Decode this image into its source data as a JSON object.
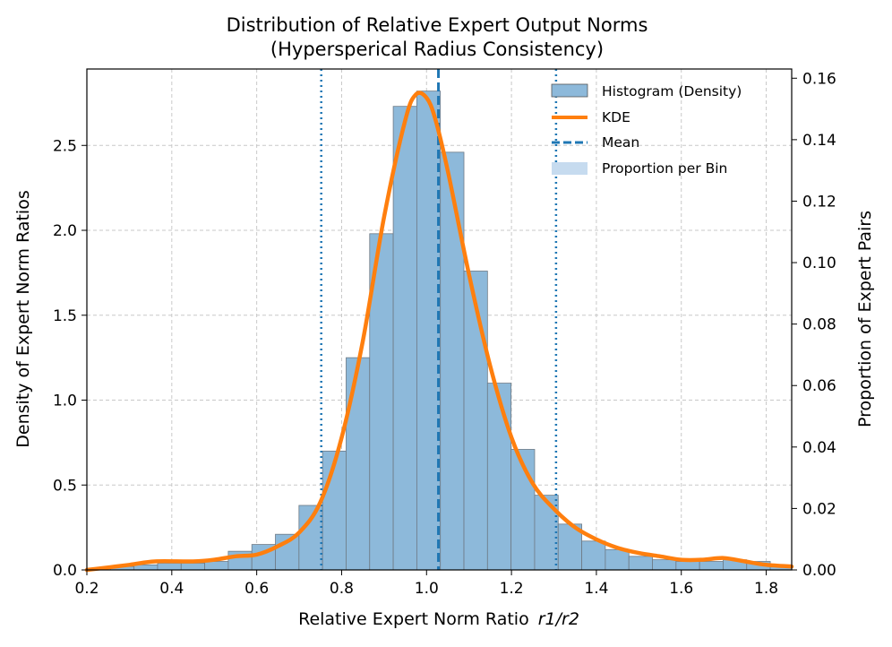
{
  "chart_data": {
    "type": "bar",
    "title": "Distribution of Relative Expert Output Norms",
    "subtitle": "(Hypersperical Radius Consistency)",
    "xlabel": "Relative Expert Norm Ratio",
    "xlabel_math": "r1/r2",
    "ylabel": "Density of Expert Norm Ratios",
    "y2label": "Proportion of Expert Pairs",
    "xlim": [
      0.2,
      1.86
    ],
    "ylim": [
      0,
      2.95
    ],
    "y2lim": [
      0,
      0.163
    ],
    "grid": true,
    "legend_position": "top-right",
    "xticks": [
      "0.2",
      "0.4",
      "0.6",
      "0.8",
      "1.0",
      "1.2",
      "1.4",
      "1.6",
      "1.8"
    ],
    "yticks": [
      "0.0",
      "0.5",
      "1.0",
      "1.5",
      "2.0",
      "2.5"
    ],
    "y2ticks": [
      "0.00",
      "0.02",
      "0.04",
      "0.06",
      "0.08",
      "0.10",
      "0.12",
      "0.14",
      "0.16"
    ],
    "bin_width": 0.0555,
    "bin_centers": [
      0.2278,
      0.2833,
      0.3388,
      0.3943,
      0.4498,
      0.5053,
      0.5608,
      0.6163,
      0.6718,
      0.7273,
      0.7828,
      0.8383,
      0.8938,
      0.9493,
      1.0048,
      1.0603,
      1.1158,
      1.1713,
      1.2268,
      1.2823,
      1.3378,
      1.3933,
      1.4488,
      1.5043,
      1.5598,
      1.6153,
      1.6708,
      1.7263,
      1.7818,
      1.8373
    ],
    "histogram_density": [
      0.01,
      0.02,
      0.03,
      0.04,
      0.04,
      0.05,
      0.11,
      0.15,
      0.21,
      0.38,
      0.7,
      1.25,
      1.98,
      2.73,
      2.82,
      2.46,
      1.76,
      1.1,
      0.71,
      0.44,
      0.27,
      0.17,
      0.12,
      0.08,
      0.06,
      0.05,
      0.05,
      0.06,
      0.05,
      0.03
    ],
    "kde": {
      "x": [
        0.2,
        0.3,
        0.36,
        0.45,
        0.5,
        0.55,
        0.6,
        0.65,
        0.7,
        0.75,
        0.8,
        0.85,
        0.9,
        0.95,
        0.975,
        1.0,
        1.02,
        1.05,
        1.1,
        1.15,
        1.2,
        1.25,
        1.3,
        1.35,
        1.4,
        1.45,
        1.5,
        1.55,
        1.6,
        1.65,
        1.7,
        1.75,
        1.8,
        1.86
      ],
      "y": [
        0.0,
        0.03,
        0.05,
        0.05,
        0.06,
        0.08,
        0.09,
        0.14,
        0.22,
        0.4,
        0.78,
        1.35,
        2.08,
        2.65,
        2.8,
        2.78,
        2.66,
        2.35,
        1.74,
        1.2,
        0.78,
        0.51,
        0.36,
        0.25,
        0.18,
        0.13,
        0.1,
        0.08,
        0.06,
        0.06,
        0.07,
        0.05,
        0.03,
        0.02
      ]
    },
    "mean": 1.028,
    "bounds": [
      0.752,
      1.305
    ],
    "series": [
      {
        "name": "Histogram (Density)",
        "color": "#8db9da"
      },
      {
        "name": "KDE",
        "color": "#ff7f0e"
      },
      {
        "name": "Mean",
        "color": "#1f77b4"
      },
      {
        "name": "Proportion per Bin",
        "color": "#c6dbef"
      }
    ]
  }
}
